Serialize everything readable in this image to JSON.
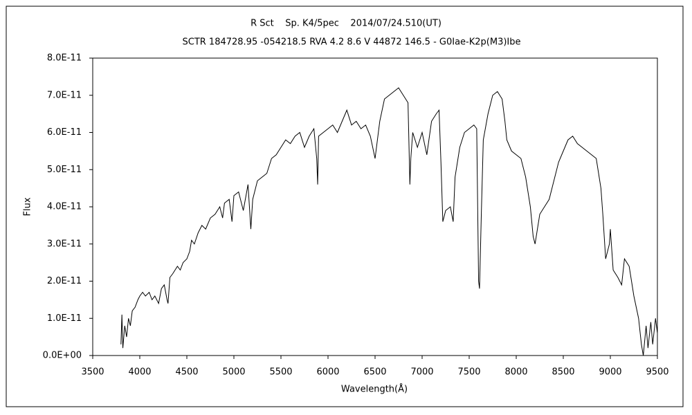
{
  "chart_data": {
    "type": "line",
    "title": "R Sct    Sp. K4/5pec    2014/07/24.510(UT)",
    "subtitle": "SCTR 184728.95 -054218.5 RVA 4.2 8.6 V 44872 146.5 - G0Iae-K2p(M3)Ibe",
    "x_label": "Wavelength(Å)",
    "y_label": "Flux",
    "color": "#000000",
    "grid": false,
    "xlim": [
      3500,
      9500
    ],
    "xticks": [
      3500,
      4000,
      4500,
      5000,
      5500,
      6000,
      6500,
      7000,
      7500,
      8000,
      8500,
      9000,
      9500
    ],
    "ylim": [
      0,
      8e-11
    ],
    "yticks": [
      {
        "value": 0,
        "label": "0.0E+00"
      },
      {
        "value": 1e-11,
        "label": "1.0E-11"
      },
      {
        "value": 2e-11,
        "label": "2.0E-11"
      },
      {
        "value": 3e-11,
        "label": "3.0E-11"
      },
      {
        "value": 4e-11,
        "label": "4.0E-11"
      },
      {
        "value": 5e-11,
        "label": "5.0E-11"
      },
      {
        "value": 6e-11,
        "label": "6.0E-11"
      },
      {
        "value": 7e-11,
        "label": "7.0E-11"
      },
      {
        "value": 8e-11,
        "label": "8.0E-11"
      }
    ],
    "x": [
      3800,
      3810,
      3820,
      3840,
      3860,
      3880,
      3900,
      3920,
      3950,
      3980,
      4000,
      4030,
      4060,
      4100,
      4130,
      4160,
      4200,
      4230,
      4260,
      4290,
      4300,
      4320,
      4350,
      4400,
      4430,
      4460,
      4500,
      4530,
      4550,
      4580,
      4620,
      4660,
      4700,
      4750,
      4800,
      4850,
      4880,
      4900,
      4950,
      4980,
      5000,
      5050,
      5100,
      5150,
      5180,
      5200,
      5250,
      5300,
      5350,
      5400,
      5450,
      5500,
      5550,
      5600,
      5650,
      5700,
      5750,
      5800,
      5850,
      5880,
      5890,
      5900,
      5950,
      6000,
      6050,
      6100,
      6150,
      6200,
      6250,
      6300,
      6350,
      6400,
      6450,
      6500,
      6520,
      6550,
      6600,
      6650,
      6700,
      6750,
      6800,
      6850,
      6870,
      6880,
      6900,
      6950,
      7000,
      7050,
      7100,
      7150,
      7180,
      7200,
      7220,
      7250,
      7300,
      7330,
      7350,
      7400,
      7450,
      7500,
      7550,
      7580,
      7600,
      7610,
      7630,
      7650,
      7700,
      7750,
      7800,
      7850,
      7880,
      7900,
      7950,
      8000,
      8050,
      8100,
      8150,
      8180,
      8200,
      8250,
      8300,
      8350,
      8400,
      8450,
      8500,
      8550,
      8600,
      8650,
      8700,
      8750,
      8800,
      8850,
      8900,
      8920,
      8950,
      8990,
      9000,
      9030,
      9080,
      9120,
      9150,
      9200,
      9250,
      9300,
      9330,
      9350,
      9380,
      9400,
      9430,
      9450,
      9480,
      9500
    ],
    "values": [
      3e-12,
      1.1e-11,
      2e-12,
      8e-12,
      5e-12,
      1e-11,
      8e-12,
      1.2e-11,
      1.3e-11,
      1.5e-11,
      1.6e-11,
      1.7e-11,
      1.6e-11,
      1.7e-11,
      1.5e-11,
      1.6e-11,
      1.4e-11,
      1.8e-11,
      1.9e-11,
      1.5e-11,
      1.4e-11,
      2.1e-11,
      2.2e-11,
      2.4e-11,
      2.3e-11,
      2.5e-11,
      2.6e-11,
      2.8e-11,
      3.1e-11,
      3e-11,
      3.3e-11,
      3.5e-11,
      3.4e-11,
      3.7e-11,
      3.8e-11,
      4e-11,
      3.7e-11,
      4.1e-11,
      4.2e-11,
      3.6e-11,
      4.3e-11,
      4.4e-11,
      3.9e-11,
      4.6e-11,
      3.4e-11,
      4.2e-11,
      4.7e-11,
      4.8e-11,
      4.9e-11,
      5.3e-11,
      5.4e-11,
      5.6e-11,
      5.8e-11,
      5.7e-11,
      5.9e-11,
      6e-11,
      5.6e-11,
      5.9e-11,
      6.1e-11,
      5.3e-11,
      4.6e-11,
      5.9e-11,
      6e-11,
      6.1e-11,
      6.2e-11,
      6e-11,
      6.3e-11,
      6.6e-11,
      6.2e-11,
      6.3e-11,
      6.1e-11,
      6.2e-11,
      5.9e-11,
      5.3e-11,
      5.7e-11,
      6.3e-11,
      6.9e-11,
      7e-11,
      7.1e-11,
      7.2e-11,
      7e-11,
      6.8e-11,
      4.6e-11,
      5.3e-11,
      6e-11,
      5.6e-11,
      6e-11,
      5.4e-11,
      6.3e-11,
      6.5e-11,
      6.6e-11,
      5.2e-11,
      3.6e-11,
      3.9e-11,
      4e-11,
      3.6e-11,
      4.8e-11,
      5.6e-11,
      6e-11,
      6.1e-11,
      6.2e-11,
      6.1e-11,
      2e-11,
      1.8e-11,
      3.9e-11,
      5.8e-11,
      6.5e-11,
      7e-11,
      7.1e-11,
      6.9e-11,
      6.3e-11,
      5.8e-11,
      5.5e-11,
      5.4e-11,
      5.3e-11,
      4.8e-11,
      4e-11,
      3.2e-11,
      3e-11,
      3.8e-11,
      4e-11,
      4.2e-11,
      4.7e-11,
      5.2e-11,
      5.5e-11,
      5.8e-11,
      5.9e-11,
      5.7e-11,
      5.6e-11,
      5.5e-11,
      5.4e-11,
      5.3e-11,
      4.5e-11,
      3.8e-11,
      2.6e-11,
      3e-11,
      3.4e-11,
      2.3e-11,
      2.1e-11,
      1.9e-11,
      2.6e-11,
      2.4e-11,
      1.6e-11,
      1e-11,
      3e-12,
      0,
      8e-12,
      2e-12,
      9e-12,
      3e-12,
      1e-11,
      6e-12
    ]
  }
}
